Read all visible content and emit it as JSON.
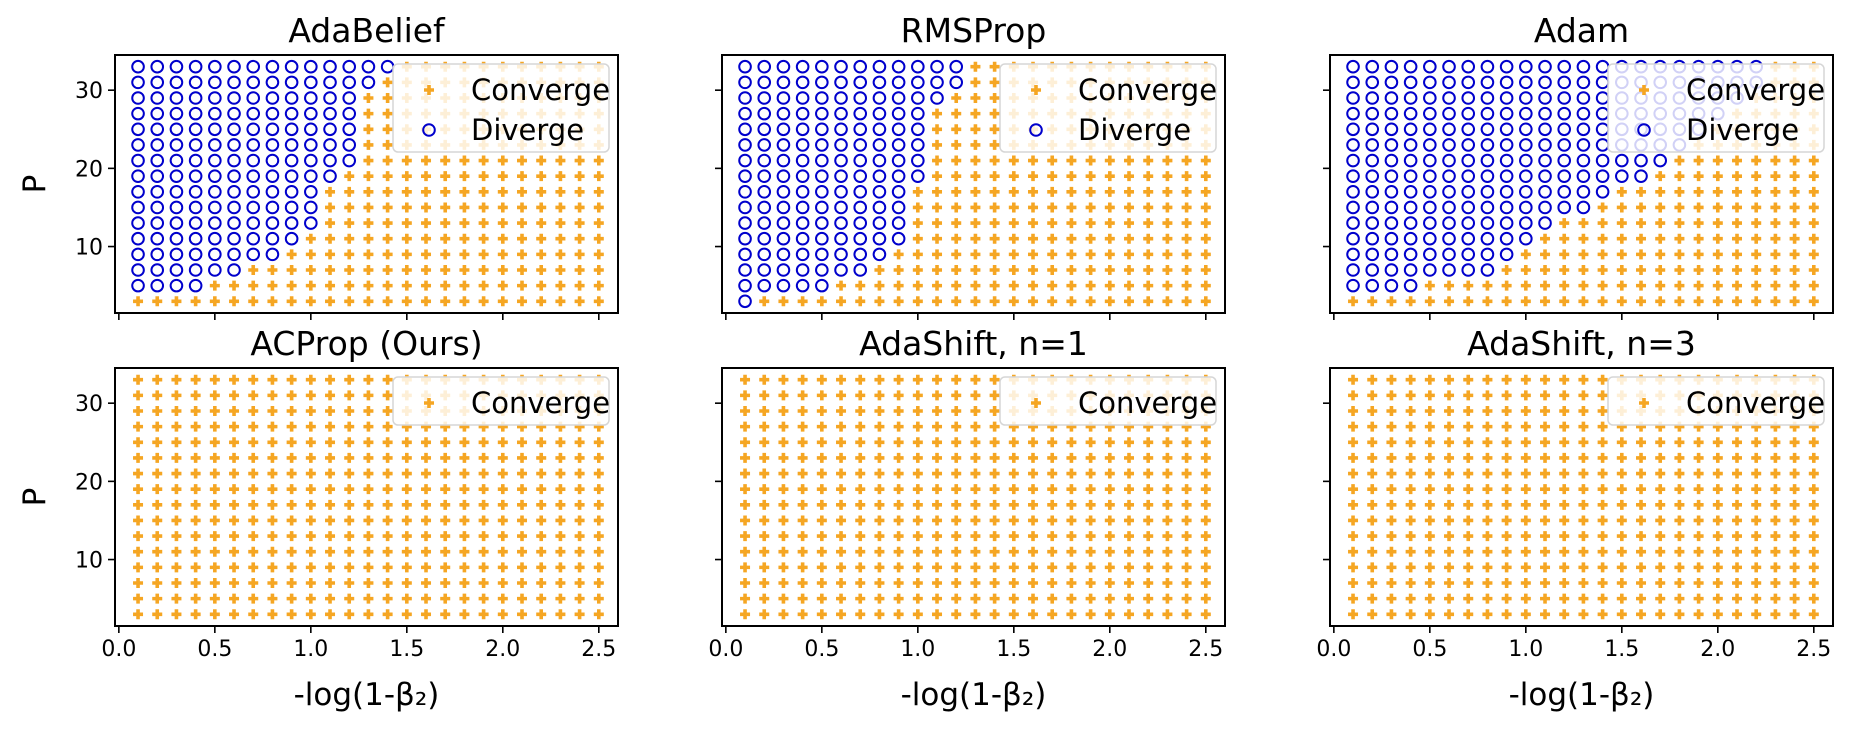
{
  "chart_data": [
    {
      "type": "scatter",
      "title": "AdaBelief",
      "xlabel": "",
      "ylabel": "P",
      "xlim": [
        -0.02,
        2.6
      ],
      "ylim": [
        1.5,
        34.5
      ],
      "xticks": [
        0.0,
        0.5,
        1.0,
        1.5,
        2.0,
        2.5
      ],
      "yticks": [
        10,
        20,
        30
      ],
      "show_xticklabels": false,
      "show_yticklabels": true,
      "x_values": [
        0.1,
        0.2,
        0.3,
        0.4,
        0.5,
        0.6,
        0.7,
        0.8,
        0.9,
        1.0,
        1.1,
        1.2,
        1.3,
        1.4,
        1.5,
        1.6,
        1.7,
        1.8,
        1.9,
        2.0,
        2.1,
        2.2,
        2.3,
        2.4,
        2.5
      ],
      "p_values": [
        3,
        5,
        7,
        9,
        11,
        13,
        15,
        17,
        19,
        21,
        23,
        25,
        27,
        29,
        31,
        33
      ],
      "legend": {
        "position": "upper right",
        "entries": [
          "Converge",
          "Diverge"
        ]
      },
      "series": [
        {
          "name": "Converge",
          "marker": "plus",
          "color": "#f5a623"
        },
        {
          "name": "Diverge",
          "marker": "circle",
          "color": "#0000cc"
        }
      ],
      "diverge_min_p": [
        5,
        5,
        5,
        5,
        7,
        7,
        9,
        9,
        11,
        13,
        19,
        21,
        31,
        33,
        99,
        99,
        99,
        99,
        99,
        99,
        99,
        99,
        99,
        99,
        99
      ]
    },
    {
      "type": "scatter",
      "title": "RMSProp",
      "xlabel": "",
      "ylabel": "",
      "xlim": [
        -0.02,
        2.6
      ],
      "ylim": [
        1.5,
        34.5
      ],
      "xticks": [
        0.0,
        0.5,
        1.0,
        1.5,
        2.0,
        2.5
      ],
      "yticks": [
        10,
        20,
        30
      ],
      "show_xticklabels": false,
      "show_yticklabels": false,
      "x_values": [
        0.1,
        0.2,
        0.3,
        0.4,
        0.5,
        0.6,
        0.7,
        0.8,
        0.9,
        1.0,
        1.1,
        1.2,
        1.3,
        1.4,
        1.5,
        1.6,
        1.7,
        1.8,
        1.9,
        2.0,
        2.1,
        2.2,
        2.3,
        2.4,
        2.5
      ],
      "p_values": [
        3,
        5,
        7,
        9,
        11,
        13,
        15,
        17,
        19,
        21,
        23,
        25,
        27,
        29,
        31,
        33
      ],
      "legend": {
        "position": "upper right",
        "entries": [
          "Converge",
          "Diverge"
        ]
      },
      "series": [
        {
          "name": "Converge",
          "marker": "plus",
          "color": "#f5a623"
        },
        {
          "name": "Diverge",
          "marker": "circle",
          "color": "#0000cc"
        }
      ],
      "diverge_min_p": [
        3,
        5,
        5,
        5,
        5,
        7,
        7,
        9,
        11,
        19,
        29,
        31,
        99,
        99,
        99,
        99,
        99,
        99,
        99,
        99,
        99,
        99,
        99,
        99,
        99
      ]
    },
    {
      "type": "scatter",
      "title": "Adam",
      "xlabel": "",
      "ylabel": "",
      "xlim": [
        -0.02,
        2.6
      ],
      "ylim": [
        1.5,
        34.5
      ],
      "xticks": [
        0.0,
        0.5,
        1.0,
        1.5,
        2.0,
        2.5
      ],
      "yticks": [
        10,
        20,
        30
      ],
      "show_xticklabels": false,
      "show_yticklabels": false,
      "x_values": [
        0.1,
        0.2,
        0.3,
        0.4,
        0.5,
        0.6,
        0.7,
        0.8,
        0.9,
        1.0,
        1.1,
        1.2,
        1.3,
        1.4,
        1.5,
        1.6,
        1.7,
        1.8,
        1.9,
        2.0,
        2.1,
        2.2,
        2.3,
        2.4,
        2.5
      ],
      "p_values": [
        3,
        5,
        7,
        9,
        11,
        13,
        15,
        17,
        19,
        21,
        23,
        25,
        27,
        29,
        31,
        33
      ],
      "legend": {
        "position": "upper right",
        "entries": [
          "Converge",
          "Diverge"
        ]
      },
      "series": [
        {
          "name": "Converge",
          "marker": "plus",
          "color": "#f5a623"
        },
        {
          "name": "Diverge",
          "marker": "circle",
          "color": "#0000cc"
        }
      ],
      "diverge_min_p": [
        5,
        5,
        5,
        5,
        7,
        7,
        7,
        7,
        9,
        11,
        13,
        15,
        15,
        17,
        19,
        19,
        21,
        23,
        25,
        27,
        29,
        31,
        99,
        99,
        99
      ]
    },
    {
      "type": "scatter",
      "title": "ACProp (Ours)",
      "xlabel": "-log(1-β₂)",
      "ylabel": "P",
      "xlim": [
        -0.02,
        2.6
      ],
      "ylim": [
        1.5,
        34.5
      ],
      "xticks": [
        0.0,
        0.5,
        1.0,
        1.5,
        2.0,
        2.5
      ],
      "yticks": [
        10,
        20,
        30
      ],
      "show_xticklabels": true,
      "show_yticklabels": true,
      "x_values": [
        0.1,
        0.2,
        0.3,
        0.4,
        0.5,
        0.6,
        0.7,
        0.8,
        0.9,
        1.0,
        1.1,
        1.2,
        1.3,
        1.4,
        1.5,
        1.6,
        1.7,
        1.8,
        1.9,
        2.0,
        2.1,
        2.2,
        2.3,
        2.4,
        2.5
      ],
      "p_values": [
        3,
        5,
        7,
        9,
        11,
        13,
        15,
        17,
        19,
        21,
        23,
        25,
        27,
        29,
        31,
        33
      ],
      "legend": {
        "position": "upper right",
        "entries": [
          "Converge"
        ]
      },
      "series": [
        {
          "name": "Converge",
          "marker": "plus",
          "color": "#f5a623"
        }
      ],
      "diverge_min_p": [
        99,
        99,
        99,
        99,
        99,
        99,
        99,
        99,
        99,
        99,
        99,
        99,
        99,
        99,
        99,
        99,
        99,
        99,
        99,
        99,
        99,
        99,
        99,
        99,
        99
      ]
    },
    {
      "type": "scatter",
      "title": "AdaShift, n=1",
      "xlabel": "-log(1-β₂)",
      "ylabel": "",
      "xlim": [
        -0.02,
        2.6
      ],
      "ylim": [
        1.5,
        34.5
      ],
      "xticks": [
        0.0,
        0.5,
        1.0,
        1.5,
        2.0,
        2.5
      ],
      "yticks": [
        10,
        20,
        30
      ],
      "show_xticklabels": true,
      "show_yticklabels": false,
      "x_values": [
        0.1,
        0.2,
        0.3,
        0.4,
        0.5,
        0.6,
        0.7,
        0.8,
        0.9,
        1.0,
        1.1,
        1.2,
        1.3,
        1.4,
        1.5,
        1.6,
        1.7,
        1.8,
        1.9,
        2.0,
        2.1,
        2.2,
        2.3,
        2.4,
        2.5
      ],
      "p_values": [
        3,
        5,
        7,
        9,
        11,
        13,
        15,
        17,
        19,
        21,
        23,
        25,
        27,
        29,
        31,
        33
      ],
      "legend": {
        "position": "upper right",
        "entries": [
          "Converge"
        ]
      },
      "series": [
        {
          "name": "Converge",
          "marker": "plus",
          "color": "#f5a623"
        }
      ],
      "diverge_min_p": [
        99,
        99,
        99,
        99,
        99,
        99,
        99,
        99,
        99,
        99,
        99,
        99,
        99,
        99,
        99,
        99,
        99,
        99,
        99,
        99,
        99,
        99,
        99,
        99,
        99
      ]
    },
    {
      "type": "scatter",
      "title": "AdaShift, n=3",
      "xlabel": "-log(1-β₂)",
      "ylabel": "",
      "xlim": [
        -0.02,
        2.6
      ],
      "ylim": [
        1.5,
        34.5
      ],
      "xticks": [
        0.0,
        0.5,
        1.0,
        1.5,
        2.0,
        2.5
      ],
      "yticks": [
        10,
        20,
        30
      ],
      "show_xticklabels": true,
      "show_yticklabels": false,
      "x_values": [
        0.1,
        0.2,
        0.3,
        0.4,
        0.5,
        0.6,
        0.7,
        0.8,
        0.9,
        1.0,
        1.1,
        1.2,
        1.3,
        1.4,
        1.5,
        1.6,
        1.7,
        1.8,
        1.9,
        2.0,
        2.1,
        2.2,
        2.3,
        2.4,
        2.5
      ],
      "p_values": [
        3,
        5,
        7,
        9,
        11,
        13,
        15,
        17,
        19,
        21,
        23,
        25,
        27,
        29,
        31,
        33
      ],
      "legend": {
        "position": "upper right",
        "entries": [
          "Converge"
        ]
      },
      "series": [
        {
          "name": "Converge",
          "marker": "plus",
          "color": "#f5a623"
        }
      ],
      "diverge_min_p": [
        99,
        99,
        99,
        99,
        99,
        99,
        99,
        99,
        99,
        99,
        99,
        99,
        99,
        99,
        99,
        99,
        99,
        99,
        99,
        99,
        99,
        99,
        99,
        99,
        99
      ]
    }
  ]
}
